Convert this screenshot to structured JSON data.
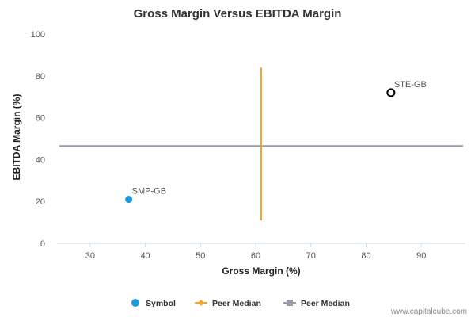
{
  "chart_data": {
    "type": "scatter",
    "title": "Gross Margin Versus EBITDA Margin",
    "xlabel": "Gross Margin (%)",
    "ylabel": "EBITDA Margin (%)",
    "xlim": [
      24,
      98
    ],
    "ylim": [
      0,
      100
    ],
    "x_ticks": [
      30,
      40,
      50,
      60,
      70,
      80,
      90
    ],
    "y_ticks": [
      0,
      20,
      40,
      60,
      80,
      100
    ],
    "grid": false,
    "points": [
      {
        "label": "SMP-GB",
        "x": 37,
        "y": 21,
        "style": "filled",
        "color": "#1a9be0"
      },
      {
        "label": "STE-GB",
        "x": 84.5,
        "y": 72,
        "style": "hollow",
        "color": "#000000"
      }
    ],
    "peer_median_x": {
      "value": 61,
      "y_range": [
        11,
        84
      ],
      "color": "#f5a623"
    },
    "peer_median_y": {
      "value": 46.5,
      "color": "#9a9aa8"
    },
    "legend": {
      "placement": "bottom",
      "items": [
        {
          "label": "Symbol",
          "marker": "circle",
          "color": "#1a9be0"
        },
        {
          "label": "Peer Median",
          "marker": "diamond-line",
          "color": "#f5a623"
        },
        {
          "label": "Peer Median",
          "marker": "square-line",
          "color": "#9a9aa8"
        }
      ]
    }
  },
  "watermark": "www.capitalcube.com"
}
